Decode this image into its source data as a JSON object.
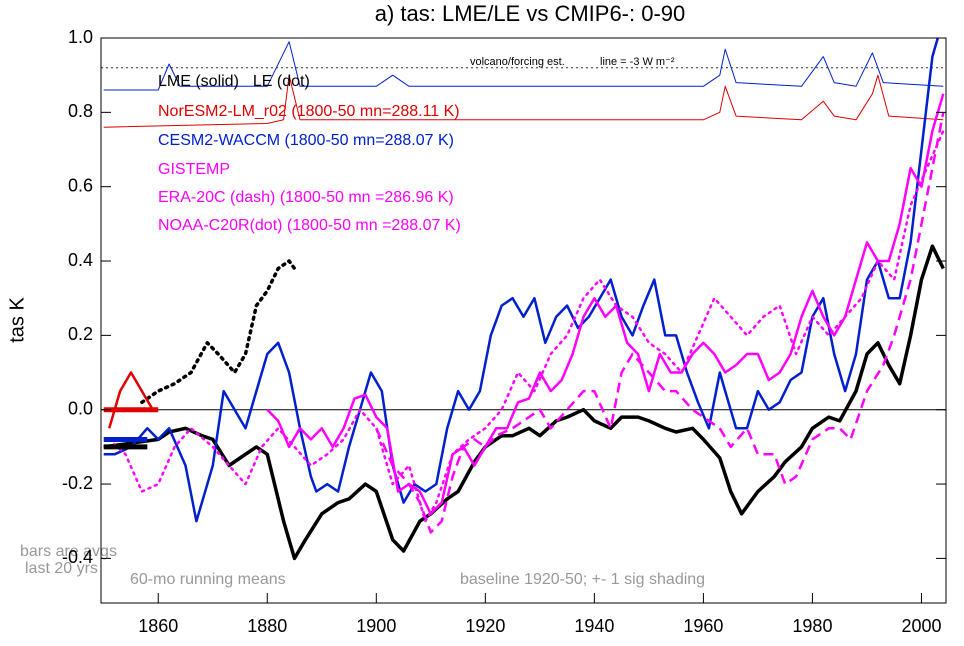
{
  "chart_data": {
    "type": "line",
    "title": "a) tas: LME/LE vs CMIP6-: 0-90",
    "y_label": "tas K",
    "xlim": [
      1849.5,
      2004.5
    ],
    "ylim": [
      -0.52,
      1.0
    ],
    "xticks": [
      1860,
      1880,
      1900,
      1920,
      1940,
      1960,
      1980,
      2000
    ],
    "yticks": [
      {
        "value": -0.4,
        "label": "-0.4"
      },
      {
        "value": -0.2,
        "label": "-0.2"
      },
      {
        "value": 0,
        "label": "0.0"
      },
      {
        "value": 0.2,
        "label": "0.2"
      },
      {
        "value": 0.4,
        "label": "0.4"
      },
      {
        "value": 0.6,
        "label": "0.6"
      },
      {
        "value": 0.8,
        "label": "0.8"
      },
      {
        "value": 1.0,
        "label": "1.0"
      }
    ],
    "hline": 0,
    "reference_line": 0.92,
    "annotations": [
      "volcano/forcing est.",
      "line = -3 W m⁻²",
      "bars are avgs",
      "last 20 yrs",
      "60-mo running means",
      "baseline 1920-50; +- 1 sig shading"
    ],
    "series": [
      {
        "name": "LME (solid)",
        "color": "#000000",
        "style": "solid",
        "x": [
          1850,
          1855,
          1860,
          1862,
          1865,
          1868,
          1870,
          1873,
          1875,
          1878,
          1880,
          1883,
          1885,
          1887,
          1890,
          1893,
          1895,
          1898,
          1900,
          1903,
          1905,
          1908,
          1910,
          1913,
          1915,
          1918,
          1920,
          1923,
          1925,
          1928,
          1930,
          1933,
          1935,
          1938,
          1940,
          1943,
          1945,
          1948,
          1950,
          1953,
          1955,
          1958,
          1960,
          1963,
          1965,
          1967,
          1970,
          1973,
          1975,
          1978,
          1980,
          1983,
          1985,
          1988,
          1990,
          1992,
          1994,
          1996,
          1998,
          2000,
          2002,
          2004
        ],
        "values": [
          -0.1,
          -0.09,
          -0.08,
          -0.06,
          -0.05,
          -0.07,
          -0.08,
          -0.15,
          -0.13,
          -0.1,
          -0.12,
          -0.3,
          -0.4,
          -0.35,
          -0.28,
          -0.25,
          -0.24,
          -0.2,
          -0.22,
          -0.35,
          -0.38,
          -0.3,
          -0.28,
          -0.24,
          -0.22,
          -0.14,
          -0.1,
          -0.07,
          -0.07,
          -0.05,
          -0.07,
          -0.03,
          -0.02,
          0.0,
          -0.03,
          -0.05,
          -0.02,
          -0.02,
          -0.03,
          -0.05,
          -0.06,
          -0.05,
          -0.08,
          -0.13,
          -0.22,
          -0.28,
          -0.22,
          -0.18,
          -0.14,
          -0.1,
          -0.05,
          -0.02,
          -0.03,
          0.05,
          0.15,
          0.18,
          0.12,
          0.07,
          0.2,
          0.35,
          0.44,
          0.38
        ]
      },
      {
        "name": "LE (dot)",
        "color": "#000000",
        "style": "dot",
        "x": [
          1857,
          1860,
          1863,
          1866,
          1869,
          1871,
          1874,
          1876,
          1878,
          1880,
          1882,
          1884,
          1885
        ],
        "values": [
          0.02,
          0.05,
          0.07,
          0.1,
          0.18,
          0.15,
          0.1,
          0.15,
          0.28,
          0.32,
          0.38,
          0.4,
          0.38
        ]
      },
      {
        "name": "NorESM2-LM_r02 (1800-50 mn=288.11 K)",
        "color": "#e00000",
        "style": "solid",
        "x": [
          1851,
          1853,
          1855,
          1857,
          1859
        ],
        "values": [
          -0.05,
          0.05,
          0.1,
          0.05,
          0.0
        ]
      },
      {
        "name": "CESM2-WACCM (1800-50 mn=288.07 K)",
        "color": "#0020cc",
        "style": "solid",
        "x": [
          1850,
          1852,
          1855,
          1858,
          1860,
          1862,
          1865,
          1867,
          1868,
          1870,
          1872,
          1874,
          1876,
          1878,
          1880,
          1882,
          1884,
          1886,
          1888,
          1889,
          1891,
          1893,
          1895,
          1897,
          1899,
          1901,
          1903,
          1905,
          1907,
          1909,
          1911,
          1913,
          1915,
          1917,
          1919,
          1921,
          1923,
          1925,
          1927,
          1929,
          1931,
          1933,
          1935,
          1937,
          1939,
          1941,
          1943,
          1945,
          1947,
          1949,
          1951,
          1953,
          1955,
          1957,
          1959,
          1961,
          1963,
          1964,
          1966,
          1968,
          1970,
          1972,
          1974,
          1976,
          1978,
          1980,
          1982,
          1984,
          1986,
          1988,
          1990,
          1992,
          1994,
          1996,
          1998,
          2000,
          2002,
          2003
        ],
        "values": [
          -0.12,
          -0.12,
          -0.1,
          -0.05,
          -0.08,
          -0.05,
          -0.15,
          -0.3,
          -0.25,
          -0.15,
          0.05,
          0.0,
          -0.05,
          0.05,
          0.15,
          0.18,
          0.1,
          -0.05,
          -0.18,
          -0.22,
          -0.2,
          -0.22,
          -0.1,
          0.0,
          0.1,
          0.05,
          -0.15,
          -0.25,
          -0.2,
          -0.22,
          -0.2,
          -0.05,
          0.05,
          0.0,
          0.05,
          0.2,
          0.28,
          0.3,
          0.25,
          0.3,
          0.18,
          0.25,
          0.28,
          0.22,
          0.25,
          0.3,
          0.35,
          0.25,
          0.2,
          0.28,
          0.35,
          0.2,
          0.2,
          0.1,
          0.02,
          -0.05,
          0.1,
          0.05,
          -0.05,
          -0.05,
          0.05,
          0.0,
          0.02,
          0.08,
          0.1,
          0.25,
          0.3,
          0.15,
          0.05,
          0.15,
          0.35,
          0.4,
          0.3,
          0.3,
          0.45,
          0.7,
          0.95,
          1.0
        ]
      },
      {
        "name": "GISTEMP",
        "color": "#ff00ff",
        "style": "solid",
        "x": [
          1880,
          1882,
          1884,
          1886,
          1888,
          1890,
          1892,
          1894,
          1896,
          1898,
          1900,
          1902,
          1904,
          1906,
          1908,
          1910,
          1912,
          1914,
          1916,
          1918,
          1920,
          1922,
          1924,
          1926,
          1928,
          1930,
          1932,
          1934,
          1936,
          1938,
          1940,
          1942,
          1944,
          1946,
          1948,
          1950,
          1952,
          1954,
          1956,
          1958,
          1960,
          1962,
          1964,
          1966,
          1968,
          1970,
          1972,
          1974,
          1976,
          1978,
          1980,
          1982,
          1984,
          1986,
          1988,
          1990,
          1992,
          1994,
          1996,
          1998,
          2000,
          2002,
          2004
        ],
        "values": [
          0.0,
          -0.03,
          -0.1,
          -0.05,
          -0.08,
          -0.05,
          -0.1,
          -0.05,
          0.03,
          0.04,
          -0.02,
          -0.05,
          -0.22,
          -0.2,
          -0.22,
          -0.28,
          -0.25,
          -0.12,
          -0.1,
          -0.15,
          -0.1,
          -0.05,
          -0.05,
          0.02,
          0.03,
          0.1,
          0.05,
          0.08,
          0.15,
          0.25,
          0.3,
          0.25,
          0.28,
          0.18,
          0.15,
          0.05,
          0.15,
          0.1,
          0.1,
          0.15,
          0.18,
          0.15,
          0.1,
          0.12,
          0.15,
          0.15,
          0.08,
          0.1,
          0.15,
          0.25,
          0.32,
          0.25,
          0.2,
          0.25,
          0.35,
          0.45,
          0.4,
          0.4,
          0.5,
          0.65,
          0.6,
          0.75,
          0.85
        ]
      },
      {
        "name": "ERA-20C (dash) (1800-50 mn =286.96 K)",
        "color": "#ff00ff",
        "style": "dash",
        "x": [
          1900,
          1903,
          1906,
          1908,
          1910,
          1912,
          1914,
          1916,
          1918,
          1920,
          1922,
          1925,
          1928,
          1930,
          1932,
          1935,
          1938,
          1940,
          1943,
          1945,
          1947,
          1950,
          1953,
          1955,
          1958,
          1960,
          1963,
          1965,
          1968,
          1970,
          1973,
          1975,
          1977,
          1980,
          1983,
          1985,
          1987,
          1990,
          1993,
          1995,
          1998,
          2000,
          2002,
          2004
        ],
        "values": [
          -0.05,
          -0.15,
          -0.2,
          -0.25,
          -0.33,
          -0.3,
          -0.18,
          -0.1,
          -0.08,
          -0.1,
          -0.07,
          -0.05,
          -0.02,
          0.0,
          -0.05,
          0.0,
          0.05,
          0.05,
          -0.05,
          0.1,
          0.15,
          0.1,
          0.05,
          0.05,
          0.0,
          -0.02,
          -0.05,
          -0.1,
          -0.05,
          -0.12,
          -0.12,
          -0.2,
          -0.18,
          -0.08,
          -0.05,
          -0.05,
          -0.08,
          0.05,
          0.12,
          0.2,
          0.35,
          0.5,
          0.65,
          0.8
        ]
      },
      {
        "name": "NOAA-C20R(dot) (1800-50 mn =288.07 K)",
        "color": "#ff00ff",
        "style": "dot",
        "x": [
          1851,
          1854,
          1857,
          1860,
          1863,
          1866,
          1870,
          1873,
          1876,
          1879,
          1882,
          1885,
          1888,
          1891,
          1894,
          1897,
          1900,
          1903,
          1906,
          1909,
          1911,
          1914,
          1917,
          1920,
          1923,
          1926,
          1929,
          1932,
          1935,
          1938,
          1941,
          1944,
          1947,
          1950,
          1953,
          1956,
          1959,
          1962,
          1965,
          1968,
          1971,
          1974,
          1977,
          1980,
          1983,
          1986,
          1989,
          1992,
          1995,
          1998,
          2001,
          2004
        ],
        "values": [
          -0.08,
          -0.12,
          -0.22,
          -0.2,
          -0.1,
          -0.05,
          -0.1,
          -0.15,
          -0.2,
          -0.1,
          -0.05,
          -0.1,
          -0.15,
          -0.12,
          -0.08,
          0.0,
          -0.05,
          -0.2,
          -0.15,
          -0.3,
          -0.25,
          -0.12,
          -0.08,
          -0.05,
          0.0,
          0.1,
          0.05,
          0.15,
          0.2,
          0.3,
          0.35,
          0.28,
          0.25,
          0.18,
          0.15,
          0.1,
          0.2,
          0.3,
          0.25,
          0.2,
          0.25,
          0.28,
          0.15,
          0.25,
          0.2,
          0.25,
          0.3,
          0.4,
          0.35,
          0.55,
          0.65,
          0.75
        ]
      }
    ],
    "forcing": [
      {
        "color": "#0020cc",
        "x": [
          1850,
          1860,
          1862,
          1864,
          1880,
          1884,
          1886,
          1900,
          1903,
          1906,
          1960,
          1963,
          1964,
          1966,
          1978,
          1982,
          1984,
          1988,
          1991,
          1993,
          2004
        ],
        "values": [
          0.86,
          0.86,
          0.93,
          0.87,
          0.87,
          0.99,
          0.87,
          0.87,
          0.9,
          0.87,
          0.87,
          0.9,
          0.97,
          0.88,
          0.87,
          0.95,
          0.88,
          0.87,
          0.96,
          0.88,
          0.87
        ]
      },
      {
        "color": "#e00000",
        "x": [
          1850,
          1880,
          1883,
          1884,
          1886,
          1960,
          1963,
          1964,
          1966,
          1978,
          1982,
          1984,
          1988,
          1991,
          1992,
          1994,
          2004
        ],
        "values": [
          0.76,
          0.77,
          0.78,
          0.9,
          0.78,
          0.78,
          0.8,
          0.87,
          0.79,
          0.78,
          0.83,
          0.79,
          0.78,
          0.85,
          0.9,
          0.79,
          0.78
        ]
      }
    ],
    "bars": [
      {
        "color": "#e00000",
        "x": [
          1850,
          1860
        ],
        "value": 0.0
      },
      {
        "color": "#0020cc",
        "x": [
          1850,
          1858
        ],
        "value": -0.08
      },
      {
        "color": "#000000",
        "x": [
          1850,
          1858
        ],
        "value": -0.1
      }
    ]
  }
}
